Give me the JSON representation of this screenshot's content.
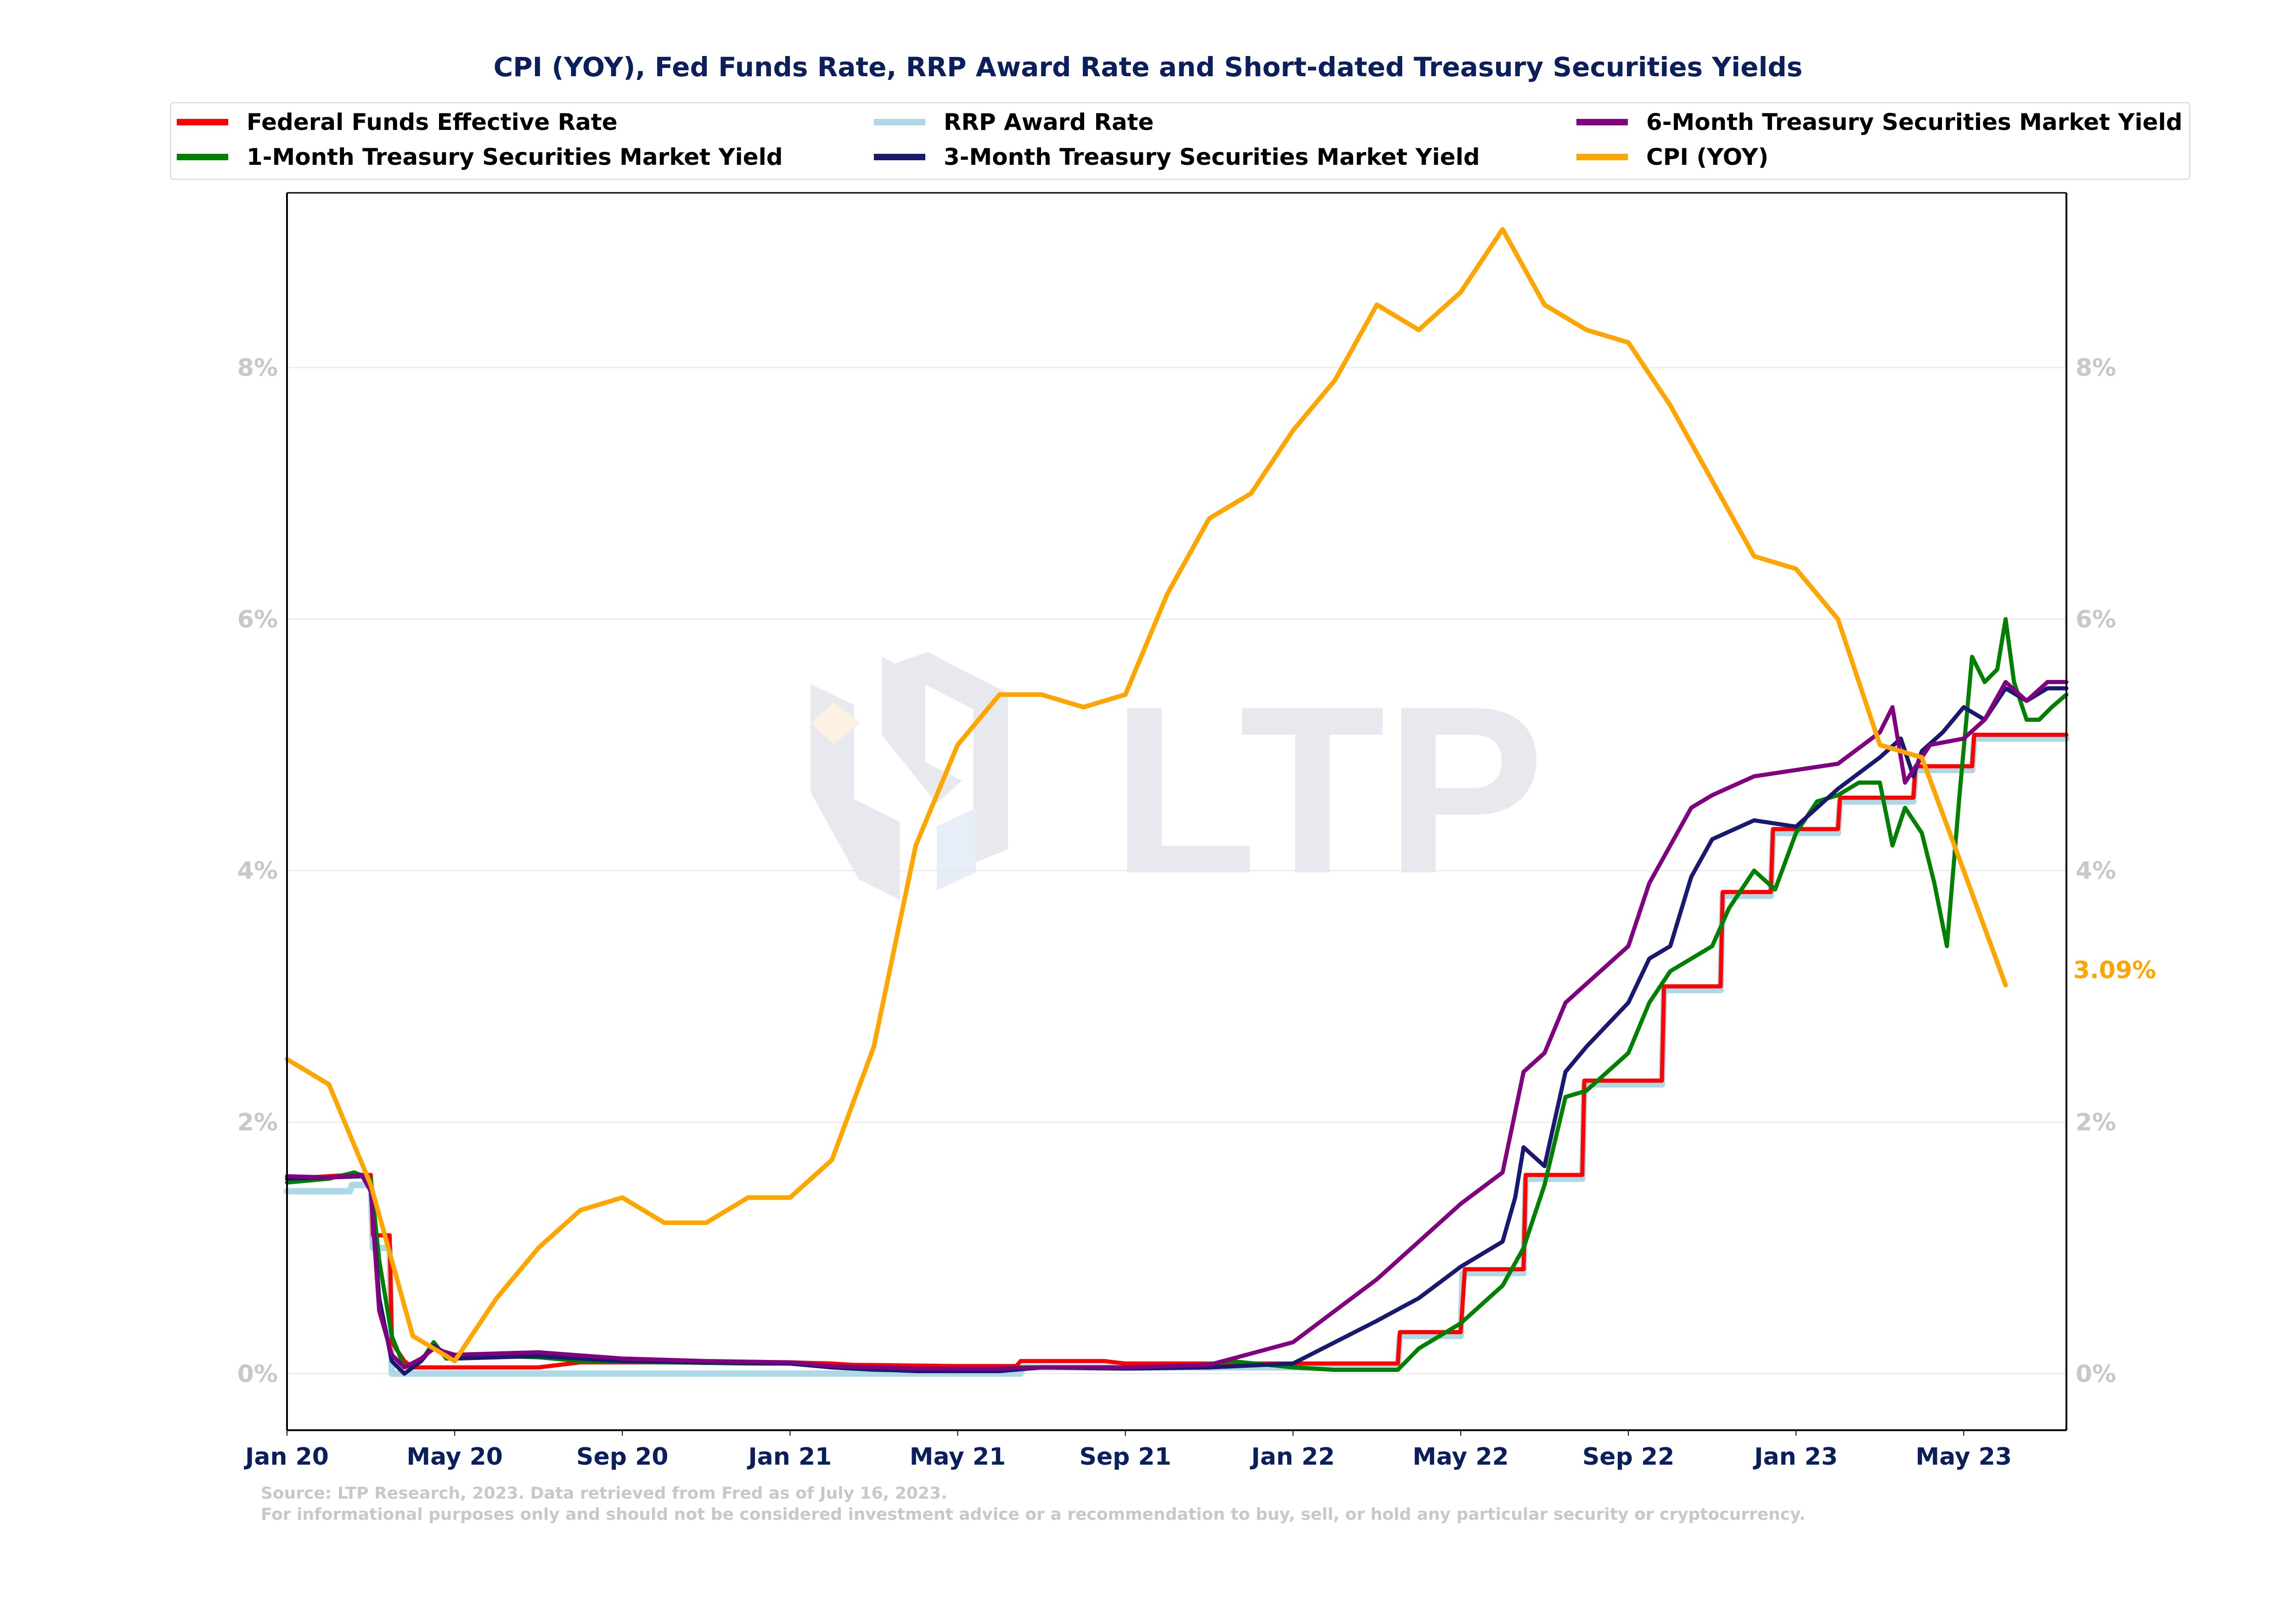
{
  "chart_data": {
    "type": "line",
    "title": "CPI (YOY), Fed Funds Rate, RRP Award Rate and Short-dated Treasury Securities Yields",
    "xlabel": "",
    "ylabel": "",
    "x_ticks": [
      "Jan 20",
      "May 20",
      "Sep 20",
      "Jan 21",
      "May 21",
      "Sep 21",
      "Jan 22",
      "May 22",
      "Sep 22",
      "Jan 23",
      "May 23"
    ],
    "x_tick_months": [
      0,
      4,
      8,
      12,
      16,
      20,
      24,
      28,
      32,
      36,
      40
    ],
    "x_range_months": [
      0,
      42.45
    ],
    "x_unit": "months since Jan 2020",
    "y_ticks": [
      "0%",
      "2%",
      "4%",
      "6%",
      "8%"
    ],
    "y_tick_values": [
      0,
      2,
      4,
      6,
      8
    ],
    "ylim": [
      -0.45,
      9.39
    ],
    "grid": "horizontal",
    "legend_position": "top",
    "last_value_label": {
      "series": "CPI (YOY)",
      "text": "3.09%",
      "value": 3.09
    },
    "series": [
      {
        "name": "Federal Funds Effective Rate",
        "color": "#ff0000",
        "style": "step",
        "points": [
          [
            0,
            1.55
          ],
          [
            1.5,
            1.58
          ],
          [
            2.0,
            1.58
          ],
          [
            2.05,
            1.1
          ],
          [
            2.45,
            1.1
          ],
          [
            2.5,
            0.25
          ],
          [
            2.8,
            0.1
          ],
          [
            3.0,
            0.05
          ],
          [
            6,
            0.05
          ],
          [
            7,
            0.09
          ],
          [
            10,
            0.09
          ],
          [
            12,
            0.09
          ],
          [
            13,
            0.08
          ],
          [
            13.5,
            0.07
          ],
          [
            16,
            0.06
          ],
          [
            17.4,
            0.06
          ],
          [
            17.5,
            0.1
          ],
          [
            19.5,
            0.1
          ],
          [
            20,
            0.08
          ],
          [
            24,
            0.08
          ],
          [
            26.5,
            0.08
          ],
          [
            26.55,
            0.33
          ],
          [
            28,
            0.33
          ],
          [
            28.1,
            0.83
          ],
          [
            29.5,
            0.83
          ],
          [
            29.55,
            1.58
          ],
          [
            30.9,
            1.58
          ],
          [
            30.95,
            2.33
          ],
          [
            32.8,
            2.33
          ],
          [
            32.85,
            3.08
          ],
          [
            34.2,
            3.08
          ],
          [
            34.25,
            3.83
          ],
          [
            35.4,
            3.83
          ],
          [
            35.45,
            4.33
          ],
          [
            37.0,
            4.33
          ],
          [
            37.05,
            4.58
          ],
          [
            38.8,
            4.58
          ],
          [
            38.85,
            4.83
          ],
          [
            40.2,
            4.83
          ],
          [
            40.25,
            5.08
          ],
          [
            42.45,
            5.08
          ]
        ]
      },
      {
        "name": "RRP Award Rate",
        "color": "#add8e6",
        "style": "step",
        "points": [
          [
            0,
            1.45
          ],
          [
            1.5,
            1.45
          ],
          [
            1.55,
            1.5
          ],
          [
            2.0,
            1.5
          ],
          [
            2.05,
            1.0
          ],
          [
            2.45,
            1.0
          ],
          [
            2.5,
            0.0
          ],
          [
            17.5,
            0.0
          ],
          [
            17.55,
            0.05
          ],
          [
            26.5,
            0.05
          ],
          [
            26.55,
            0.3
          ],
          [
            28,
            0.3
          ],
          [
            28.05,
            0.8
          ],
          [
            29.5,
            0.8
          ],
          [
            29.55,
            1.55
          ],
          [
            30.9,
            1.55
          ],
          [
            30.95,
            2.3
          ],
          [
            32.8,
            2.3
          ],
          [
            32.85,
            3.05
          ],
          [
            34.2,
            3.05
          ],
          [
            34.25,
            3.8
          ],
          [
            35.4,
            3.8
          ],
          [
            35.45,
            4.3
          ],
          [
            37.0,
            4.3
          ],
          [
            37.05,
            4.55
          ],
          [
            38.8,
            4.55
          ],
          [
            38.85,
            4.8
          ],
          [
            40.2,
            4.8
          ],
          [
            40.25,
            5.05
          ],
          [
            42.45,
            5.05
          ]
        ]
      },
      {
        "name": "1-Month Treasury Securities Market Yield",
        "color": "#008000",
        "style": "line",
        "points": [
          [
            0,
            1.52
          ],
          [
            1,
            1.55
          ],
          [
            1.6,
            1.6
          ],
          [
            2.0,
            1.55
          ],
          [
            2.2,
            0.9
          ],
          [
            2.5,
            0.3
          ],
          [
            2.8,
            0.05
          ],
          [
            3.2,
            0.1
          ],
          [
            3.5,
            0.25
          ],
          [
            3.8,
            0.12
          ],
          [
            5,
            0.14
          ],
          [
            6,
            0.13
          ],
          [
            7,
            0.1
          ],
          [
            9,
            0.09
          ],
          [
            11,
            0.08
          ],
          [
            12,
            0.08
          ],
          [
            13,
            0.05
          ],
          [
            14,
            0.03
          ],
          [
            16,
            0.02
          ],
          [
            17.5,
            0.05
          ],
          [
            20,
            0.05
          ],
          [
            21.5,
            0.05
          ],
          [
            22.5,
            0.1
          ],
          [
            24,
            0.05
          ],
          [
            25,
            0.03
          ],
          [
            26.5,
            0.03
          ],
          [
            27,
            0.2
          ],
          [
            28,
            0.4
          ],
          [
            29,
            0.7
          ],
          [
            29.5,
            1.0
          ],
          [
            30,
            1.5
          ],
          [
            30.5,
            2.2
          ],
          [
            31,
            2.25
          ],
          [
            32,
            2.55
          ],
          [
            32.5,
            2.95
          ],
          [
            33,
            3.2
          ],
          [
            34,
            3.4
          ],
          [
            34.4,
            3.7
          ],
          [
            35,
            4.0
          ],
          [
            35.5,
            3.85
          ],
          [
            36,
            4.3
          ],
          [
            36.5,
            4.55
          ],
          [
            37,
            4.6
          ],
          [
            37.5,
            4.7
          ],
          [
            38,
            4.7
          ],
          [
            38.3,
            4.2
          ],
          [
            38.6,
            4.5
          ],
          [
            39,
            4.3
          ],
          [
            39.3,
            3.9
          ],
          [
            39.6,
            3.4
          ],
          [
            39.9,
            4.6
          ],
          [
            40.2,
            5.7
          ],
          [
            40.5,
            5.5
          ],
          [
            40.8,
            5.6
          ],
          [
            41.0,
            6.0
          ],
          [
            41.2,
            5.5
          ],
          [
            41.5,
            5.2
          ],
          [
            41.8,
            5.2
          ],
          [
            42.1,
            5.3
          ],
          [
            42.45,
            5.4
          ]
        ]
      },
      {
        "name": "3-Month Treasury Securities Market Yield",
        "color": "#191970",
        "style": "line",
        "points": [
          [
            0,
            1.55
          ],
          [
            1,
            1.56
          ],
          [
            1.8,
            1.57
          ],
          [
            2.0,
            1.45
          ],
          [
            2.2,
            0.6
          ],
          [
            2.5,
            0.1
          ],
          [
            2.8,
            0.0
          ],
          [
            3.2,
            0.1
          ],
          [
            3.5,
            0.22
          ],
          [
            4,
            0.12
          ],
          [
            6,
            0.14
          ],
          [
            8,
            0.1
          ],
          [
            10,
            0.09
          ],
          [
            12,
            0.08
          ],
          [
            13,
            0.05
          ],
          [
            15,
            0.02
          ],
          [
            17,
            0.02
          ],
          [
            18,
            0.05
          ],
          [
            20,
            0.04
          ],
          [
            22,
            0.05
          ],
          [
            24,
            0.08
          ],
          [
            25,
            0.25
          ],
          [
            26,
            0.42
          ],
          [
            27,
            0.6
          ],
          [
            28,
            0.85
          ],
          [
            29,
            1.05
          ],
          [
            29.3,
            1.4
          ],
          [
            29.5,
            1.8
          ],
          [
            30,
            1.65
          ],
          [
            30.5,
            2.4
          ],
          [
            31,
            2.6
          ],
          [
            32,
            2.95
          ],
          [
            32.5,
            3.3
          ],
          [
            33,
            3.4
          ],
          [
            33.5,
            3.95
          ],
          [
            34,
            4.25
          ],
          [
            35,
            4.4
          ],
          [
            36,
            4.35
          ],
          [
            37,
            4.65
          ],
          [
            38,
            4.9
          ],
          [
            38.5,
            5.05
          ],
          [
            38.8,
            4.75
          ],
          [
            39,
            4.95
          ],
          [
            39.5,
            5.1
          ],
          [
            40,
            5.3
          ],
          [
            40.5,
            5.2
          ],
          [
            41,
            5.45
          ],
          [
            41.5,
            5.35
          ],
          [
            42,
            5.45
          ],
          [
            42.45,
            5.45
          ]
        ]
      },
      {
        "name": "6-Month Treasury Securities Market Yield",
        "color": "#800080",
        "style": "line",
        "points": [
          [
            0,
            1.57
          ],
          [
            1,
            1.56
          ],
          [
            1.8,
            1.58
          ],
          [
            2.0,
            1.45
          ],
          [
            2.2,
            0.5
          ],
          [
            2.5,
            0.15
          ],
          [
            2.8,
            0.05
          ],
          [
            3.2,
            0.12
          ],
          [
            3.5,
            0.2
          ],
          [
            4,
            0.15
          ],
          [
            6,
            0.17
          ],
          [
            8,
            0.12
          ],
          [
            10,
            0.1
          ],
          [
            12,
            0.09
          ],
          [
            13,
            0.06
          ],
          [
            15,
            0.04
          ],
          [
            17,
            0.04
          ],
          [
            18,
            0.05
          ],
          [
            20,
            0.05
          ],
          [
            22,
            0.07
          ],
          [
            24,
            0.25
          ],
          [
            25,
            0.5
          ],
          [
            26,
            0.75
          ],
          [
            27,
            1.05
          ],
          [
            28,
            1.35
          ],
          [
            29,
            1.6
          ],
          [
            29.5,
            2.4
          ],
          [
            30,
            2.55
          ],
          [
            30.5,
            2.95
          ],
          [
            31,
            3.1
          ],
          [
            32,
            3.4
          ],
          [
            32.5,
            3.9
          ],
          [
            33,
            4.2
          ],
          [
            33.5,
            4.5
          ],
          [
            34,
            4.6
          ],
          [
            35,
            4.75
          ],
          [
            36,
            4.8
          ],
          [
            37,
            4.85
          ],
          [
            38,
            5.1
          ],
          [
            38.3,
            5.3
          ],
          [
            38.6,
            4.7
          ],
          [
            38.9,
            4.85
          ],
          [
            39.2,
            5.0
          ],
          [
            40,
            5.05
          ],
          [
            40.5,
            5.2
          ],
          [
            41,
            5.5
          ],
          [
            41.5,
            5.35
          ],
          [
            42,
            5.5
          ],
          [
            42.45,
            5.5
          ]
        ]
      },
      {
        "name": "CPI (YOY)",
        "color": "#ffa500",
        "style": "line",
        "points": [
          [
            0,
            2.5
          ],
          [
            1,
            2.3
          ],
          [
            2,
            1.5
          ],
          [
            3,
            0.3
          ],
          [
            4,
            0.1
          ],
          [
            5,
            0.6
          ],
          [
            6,
            1.0
          ],
          [
            7,
            1.3
          ],
          [
            8,
            1.4
          ],
          [
            9,
            1.2
          ],
          [
            10,
            1.2
          ],
          [
            11,
            1.4
          ],
          [
            12,
            1.4
          ],
          [
            13,
            1.7
          ],
          [
            14,
            2.6
          ],
          [
            15,
            4.2
          ],
          [
            16,
            5.0
          ],
          [
            17,
            5.4
          ],
          [
            18,
            5.4
          ],
          [
            19,
            5.3
          ],
          [
            20,
            5.4
          ],
          [
            21,
            6.2
          ],
          [
            22,
            6.8
          ],
          [
            23,
            7.0
          ],
          [
            24,
            7.5
          ],
          [
            25,
            7.9
          ],
          [
            26,
            8.5
          ],
          [
            27,
            8.3
          ],
          [
            28,
            8.6
          ],
          [
            29,
            9.1
          ],
          [
            30,
            8.5
          ],
          [
            31,
            8.3
          ],
          [
            32,
            8.2
          ],
          [
            33,
            7.7
          ],
          [
            34,
            7.1
          ],
          [
            35,
            6.5
          ],
          [
            36,
            6.4
          ],
          [
            37,
            6.0
          ],
          [
            38,
            5.0
          ],
          [
            39,
            4.9
          ],
          [
            40,
            4.0
          ],
          [
            41,
            3.09
          ]
        ]
      }
    ]
  },
  "legend": {
    "items": [
      {
        "label": "Federal Funds Effective Rate",
        "color": "#ff0000"
      },
      {
        "label": "1-Month Treasury Securities Market Yield",
        "color": "#008000"
      },
      {
        "label": "RRP Award Rate",
        "color": "#add8e6"
      },
      {
        "label": "3-Month Treasury Securities Market Yield",
        "color": "#191970"
      },
      {
        "label": "6-Month Treasury Securities Market Yield",
        "color": "#800080"
      },
      {
        "label": "CPI (YOY)",
        "color": "#ffa500"
      }
    ]
  },
  "watermark": {
    "text": "LTP"
  },
  "footer": {
    "source": "Source: LTP Research, 2023. Data retrieved from Fred as of July 16, 2023.",
    "disclaimer": "For informational purposes only and should not be considered investment advice or a recommendation to buy, sell, or hold any particular security or cryptocurrency."
  },
  "colors": {
    "title": "#0b1f5c",
    "tick_y": "#c8c8c8",
    "tick_x": "#0b1f5c",
    "grid": "#e6e6e6",
    "footer": "#c8c8c8"
  }
}
